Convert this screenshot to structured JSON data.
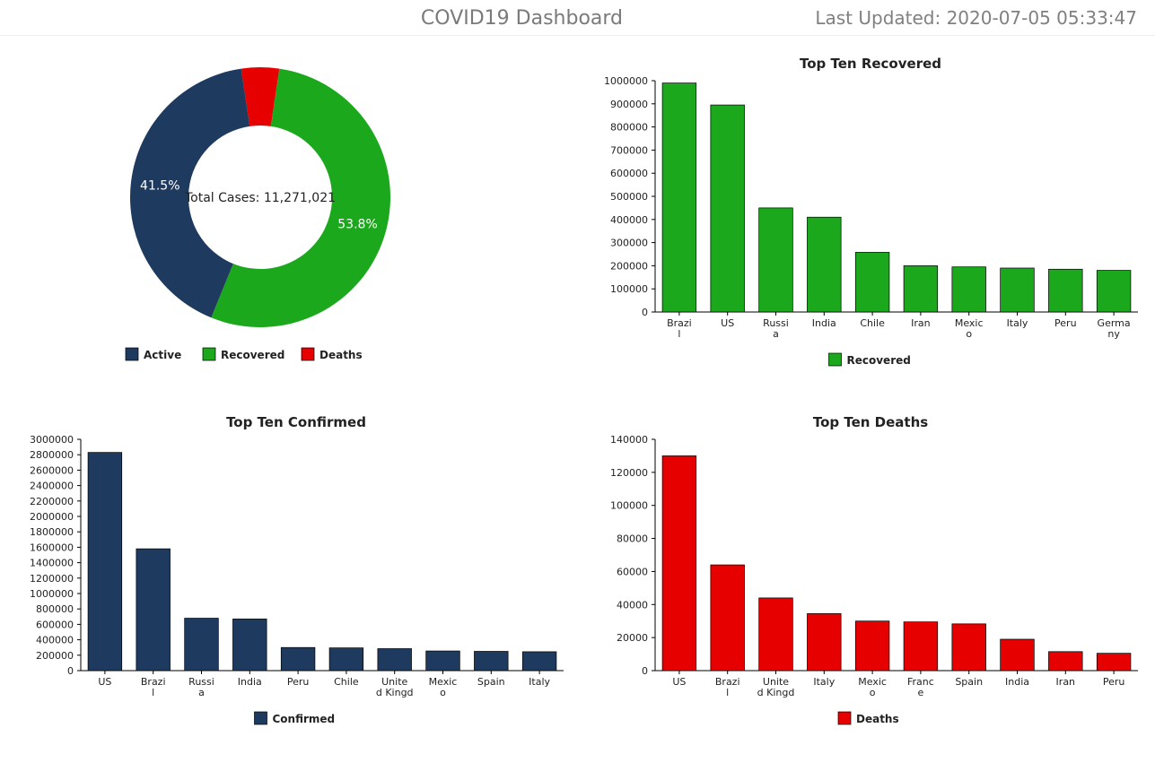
{
  "header": {
    "title": "COVID19 Dashboard",
    "updated_label": "Last Updated: 2020-07-05 05:33:47"
  },
  "colors": {
    "active": "#1f3a5f",
    "recovered": "#1ca81c",
    "deaths": "#e60000",
    "confirmed": "#1f3a5f",
    "axis": "#000000",
    "bg": "#ffffff",
    "title_text": "#7a7a7a"
  },
  "donut": {
    "center_text": "Total Cases: 11,271,021",
    "segments": [
      {
        "label": "Active",
        "pct": 41.5,
        "color": "#1f3a5f",
        "show_pct": true
      },
      {
        "label": "Recovered",
        "pct": 53.8,
        "color": "#1ca81c",
        "show_pct": true
      },
      {
        "label": "Deaths",
        "pct": 4.7,
        "color": "#e60000",
        "show_pct": false
      }
    ],
    "legend": [
      "Active",
      "Recovered",
      "Deaths"
    ]
  },
  "recovered_chart": {
    "type": "bar",
    "title": "Top Ten Recovered",
    "series_label": "Recovered",
    "color": "#1ca81c",
    "categories": [
      "Brazil",
      "US",
      "Russia",
      "India",
      "Chile",
      "Iran",
      "Mexico",
      "Italy",
      "Peru",
      "Germany"
    ],
    "values": [
      990000,
      895000,
      450000,
      410000,
      258000,
      200000,
      195000,
      190000,
      185000,
      180000
    ],
    "ylim": [
      0,
      1000000
    ],
    "ytick_step": 100000,
    "bar_width": 0.7,
    "label_fontsize": 11,
    "title_fontsize": 15
  },
  "confirmed_chart": {
    "type": "bar",
    "title": "Top Ten Confirmed",
    "series_label": "Confirmed",
    "color": "#1f3a5f",
    "categories": [
      "US",
      "Brazil",
      "Russia",
      "India",
      "Peru",
      "Chile",
      "United Kingd",
      "Mexico",
      "Spain",
      "Italy"
    ],
    "values": [
      2830000,
      1580000,
      680000,
      670000,
      300000,
      295000,
      285000,
      255000,
      250000,
      245000
    ],
    "ylim": [
      0,
      3000000
    ],
    "ytick_step": 200000,
    "bar_width": 0.7,
    "label_fontsize": 11,
    "title_fontsize": 15
  },
  "deaths_chart": {
    "type": "bar",
    "title": "Top Ten Deaths",
    "series_label": "Deaths",
    "color": "#e60000",
    "categories": [
      "US",
      "Brazil",
      "United Kingd",
      "Italy",
      "Mexico",
      "France",
      "Spain",
      "India",
      "Iran",
      "Peru"
    ],
    "values": [
      130000,
      64000,
      44000,
      34500,
      30000,
      29500,
      28300,
      19000,
      11500,
      10500
    ],
    "ylim": [
      0,
      140000
    ],
    "ytick_step": 20000,
    "bar_width": 0.7,
    "label_fontsize": 11,
    "title_fontsize": 15
  }
}
